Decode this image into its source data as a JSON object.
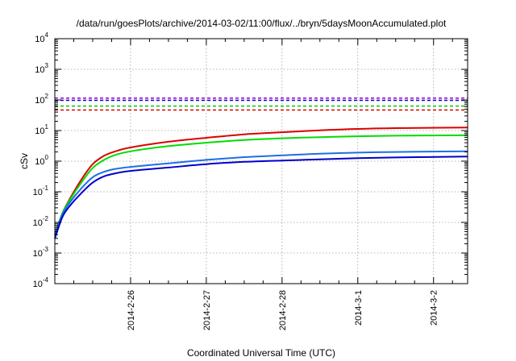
{
  "chart_data": {
    "type": "line",
    "title": "/data/run/goesPlots/archive/2014-03-02/11:00/flux/../bryn/5daysMoonAccumulated.plot",
    "xlabel": "Coordinated Universal Time (UTC)",
    "ylabel": "cSv",
    "y_scale": "log",
    "ylim_exponents": [
      -4,
      4
    ],
    "y_ticks": [
      {
        "base": "10",
        "exp": "4"
      },
      {
        "base": "10",
        "exp": "3"
      },
      {
        "base": "10",
        "exp": "2"
      },
      {
        "base": "10",
        "exp": "1"
      },
      {
        "base": "10",
        "exp": "0"
      },
      {
        "base": "10",
        "exp": "-1"
      },
      {
        "base": "10",
        "exp": "-2"
      },
      {
        "base": "10",
        "exp": "-3"
      },
      {
        "base": "10",
        "exp": "-4"
      }
    ],
    "x_range_days": [
      2014,
      2,
      25,
      2014,
      3,
      2.45
    ],
    "x_ticks": [
      "2014-2-26",
      "2014-2-27",
      "2014-2-28",
      "2014-3-1",
      "2014-3-2"
    ],
    "grid": true,
    "legend": "none",
    "thresholds": [
      {
        "color": "#9400d3",
        "value": 115
      },
      {
        "color": "#0000cd",
        "value": 97
      },
      {
        "color": "#00cc00",
        "value": 63
      },
      {
        "color": "#dd0000",
        "value": 47
      }
    ],
    "series": [
      {
        "color": "#dd0000",
        "points": [
          [
            0,
            0.004
          ],
          [
            0.1,
            0.02
          ],
          [
            0.2,
            0.06
          ],
          [
            0.35,
            0.25
          ],
          [
            0.5,
            0.8
          ],
          [
            0.65,
            1.5
          ],
          [
            0.8,
            2.1
          ],
          [
            1,
            2.8
          ],
          [
            1.5,
            4.3
          ],
          [
            2,
            5.8
          ],
          [
            2.5,
            7.5
          ],
          [
            3,
            8.8
          ],
          [
            3.5,
            10.2
          ],
          [
            4,
            11.3
          ],
          [
            4.5,
            12.0
          ],
          [
            5.45,
            12.6
          ]
        ]
      },
      {
        "color": "#00dd00",
        "points": [
          [
            0,
            0.004
          ],
          [
            0.1,
            0.02
          ],
          [
            0.2,
            0.055
          ],
          [
            0.35,
            0.2
          ],
          [
            0.5,
            0.6
          ],
          [
            0.65,
            1.1
          ],
          [
            0.8,
            1.6
          ],
          [
            1,
            2.1
          ],
          [
            1.5,
            3.1
          ],
          [
            2,
            4.0
          ],
          [
            2.5,
            4.9
          ],
          [
            3,
            5.6
          ],
          [
            3.5,
            6.1
          ],
          [
            4,
            6.5
          ],
          [
            4.5,
            6.8
          ],
          [
            5.45,
            7.0
          ]
        ]
      },
      {
        "color": "#1e6ee6",
        "points": [
          [
            0,
            0.004
          ],
          [
            0.1,
            0.018
          ],
          [
            0.2,
            0.045
          ],
          [
            0.35,
            0.13
          ],
          [
            0.5,
            0.3
          ],
          [
            0.65,
            0.45
          ],
          [
            0.8,
            0.56
          ],
          [
            1,
            0.65
          ],
          [
            1.5,
            0.85
          ],
          [
            2,
            1.1
          ],
          [
            2.5,
            1.35
          ],
          [
            3,
            1.55
          ],
          [
            3.5,
            1.75
          ],
          [
            4,
            1.9
          ],
          [
            4.5,
            2.0
          ],
          [
            5.45,
            2.1
          ]
        ]
      },
      {
        "color": "#0000cc",
        "points": [
          [
            0,
            0.003
          ],
          [
            0.1,
            0.015
          ],
          [
            0.2,
            0.035
          ],
          [
            0.35,
            0.09
          ],
          [
            0.5,
            0.2
          ],
          [
            0.65,
            0.32
          ],
          [
            0.8,
            0.4
          ],
          [
            1,
            0.48
          ],
          [
            1.5,
            0.62
          ],
          [
            2,
            0.8
          ],
          [
            2.5,
            0.95
          ],
          [
            3,
            1.05
          ],
          [
            3.5,
            1.15
          ],
          [
            4,
            1.25
          ],
          [
            4.5,
            1.32
          ],
          [
            5.45,
            1.42
          ]
        ]
      }
    ]
  }
}
